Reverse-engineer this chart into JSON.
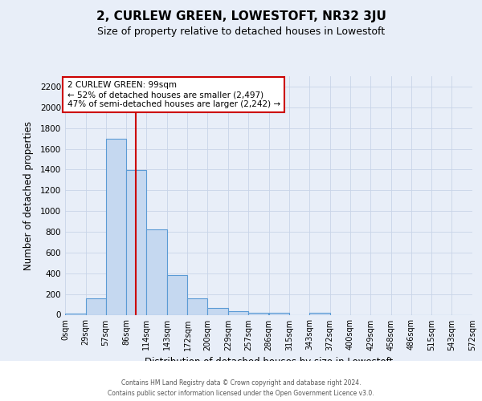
{
  "title": "2, CURLEW GREEN, LOWESTOFT, NR32 3JU",
  "subtitle": "Size of property relative to detached houses in Lowestoft",
  "xlabel": "Distribution of detached houses by size in Lowestoft",
  "ylabel": "Number of detached properties",
  "bin_labels": [
    "0sqm",
    "29sqm",
    "57sqm",
    "86sqm",
    "114sqm",
    "143sqm",
    "172sqm",
    "200sqm",
    "229sqm",
    "257sqm",
    "286sqm",
    "315sqm",
    "343sqm",
    "372sqm",
    "400sqm",
    "429sqm",
    "458sqm",
    "486sqm",
    "515sqm",
    "543sqm",
    "572sqm"
  ],
  "bin_edges": [
    0,
    29,
    57,
    86,
    114,
    143,
    172,
    200,
    229,
    257,
    286,
    315,
    343,
    372,
    400,
    429,
    458,
    486,
    515,
    543,
    572
  ],
  "bar_heights": [
    10,
    155,
    1700,
    1395,
    820,
    385,
    160,
    65,
    35,
    20,
    20,
    0,
    20,
    0,
    0,
    0,
    0,
    0,
    0,
    0
  ],
  "bar_color": "#c5d8f0",
  "bar_edge_color": "#5b9bd5",
  "vline_x": 99,
  "vline_color": "#cc0000",
  "ylim": [
    0,
    2300
  ],
  "yticks": [
    0,
    200,
    400,
    600,
    800,
    1000,
    1200,
    1400,
    1600,
    1800,
    2000,
    2200
  ],
  "annotation_title": "2 CURLEW GREEN: 99sqm",
  "annotation_line1": "← 52% of detached houses are smaller (2,497)",
  "annotation_line2": "47% of semi-detached houses are larger (2,242) →",
  "annotation_box_color": "#ffffff",
  "annotation_box_edge": "#cc0000",
  "grid_color": "#c8d4e8",
  "background_color": "#e8eef8",
  "footer1": "Contains HM Land Registry data © Crown copyright and database right 2024.",
  "footer2": "Contains public sector information licensed under the Open Government Licence v3.0."
}
